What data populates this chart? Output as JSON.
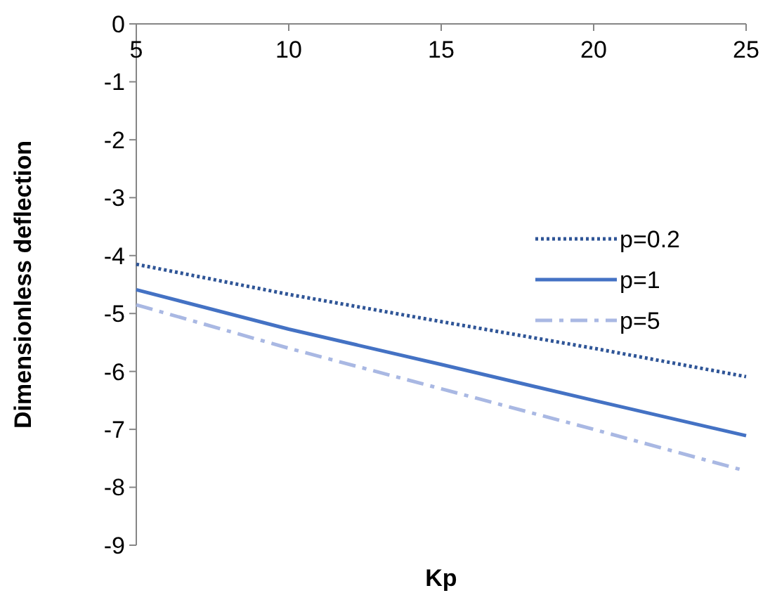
{
  "chart_data": {
    "type": "line",
    "xlabel": "Kp",
    "ylabel": "Dimensionless deflection",
    "x": [
      5,
      10,
      15,
      20,
      25
    ],
    "xlim": [
      5,
      25
    ],
    "xticks": [
      5,
      10,
      15,
      20,
      25
    ],
    "ylim": [
      -9,
      0
    ],
    "yticks": [
      0,
      -1,
      -2,
      -3,
      -4,
      -5,
      -6,
      -7,
      -8,
      -9
    ],
    "grid": false,
    "legend": "top right",
    "series": [
      {
        "name": "p=0.2",
        "color": "#2f5597",
        "line_style": "dotted",
        "values": [
          -4.15,
          -4.67,
          -5.14,
          -5.6,
          -6.09
        ]
      },
      {
        "name": "p=1",
        "color": "#4472c4",
        "line_style": "solid",
        "values": [
          -4.59,
          -5.27,
          -5.88,
          -6.5,
          -7.11
        ]
      },
      {
        "name": "p=5",
        "color": "#a9b8e3",
        "line_style": "dashdot",
        "values": [
          -4.85,
          -5.6,
          -6.3,
          -7.0,
          -7.72
        ]
      }
    ]
  }
}
